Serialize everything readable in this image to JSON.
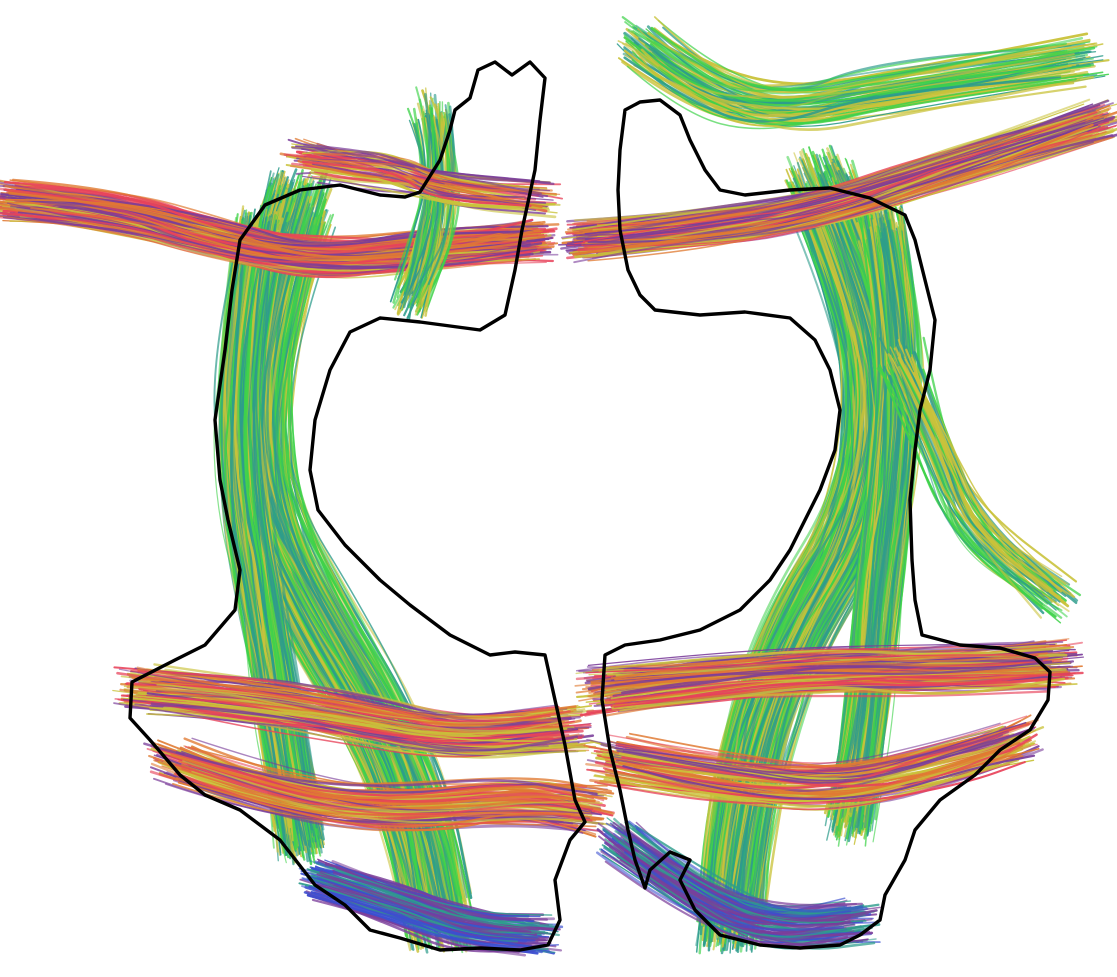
{
  "image": {
    "kind": "diffusion-mri-tractography-rendering",
    "background_color": "#ffffff",
    "outline_color": "#000000",
    "hemispheres": [
      "left-hemisphere",
      "right-hemisphere"
    ],
    "fiber_palette": {
      "left-right": "#e8425a",
      "anterior-posterior": "#3fd24a",
      "superior-inferior": "#3b4fd0",
      "blend-yellow": "#c9c23a",
      "blend-teal": "#2e9c8c",
      "blend-orange": "#e07a32",
      "blend-purple": "#7a3d9a"
    }
  }
}
